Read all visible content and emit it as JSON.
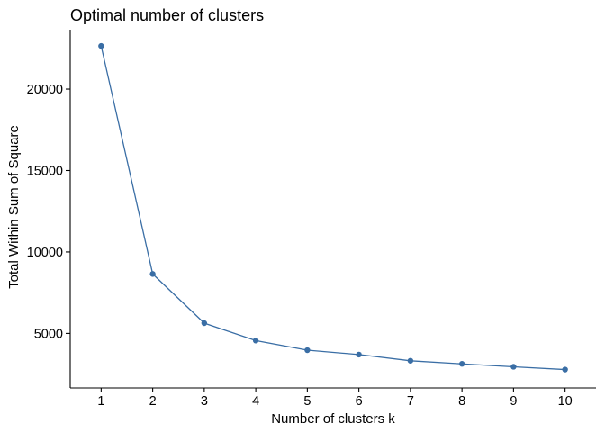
{
  "chart_data": {
    "type": "line",
    "title": "Optimal number of clusters",
    "xlabel": "Number of clusters k",
    "ylabel": "Total Within Sum of Square",
    "x": [
      1,
      2,
      3,
      4,
      5,
      6,
      7,
      8,
      9,
      10
    ],
    "series": [
      {
        "values": [
          22650,
          8650,
          5630,
          4560,
          3970,
          3700,
          3320,
          3130,
          2950,
          2780
        ],
        "color": "#3a6ea5"
      }
    ],
    "x_ticks": [
      "1",
      "2",
      "3",
      "4",
      "5",
      "6",
      "7",
      "8",
      "9",
      "10"
    ],
    "y_ticks": [
      {
        "value": 5000,
        "label": "5000"
      },
      {
        "value": 10000,
        "label": "10000"
      },
      {
        "value": 15000,
        "label": "15000"
      },
      {
        "value": 20000,
        "label": "20000"
      }
    ],
    "xlim": [
      0.4,
      10.6
    ],
    "ylim": [
      1650,
      23650
    ],
    "grid": false,
    "legend": "none"
  }
}
